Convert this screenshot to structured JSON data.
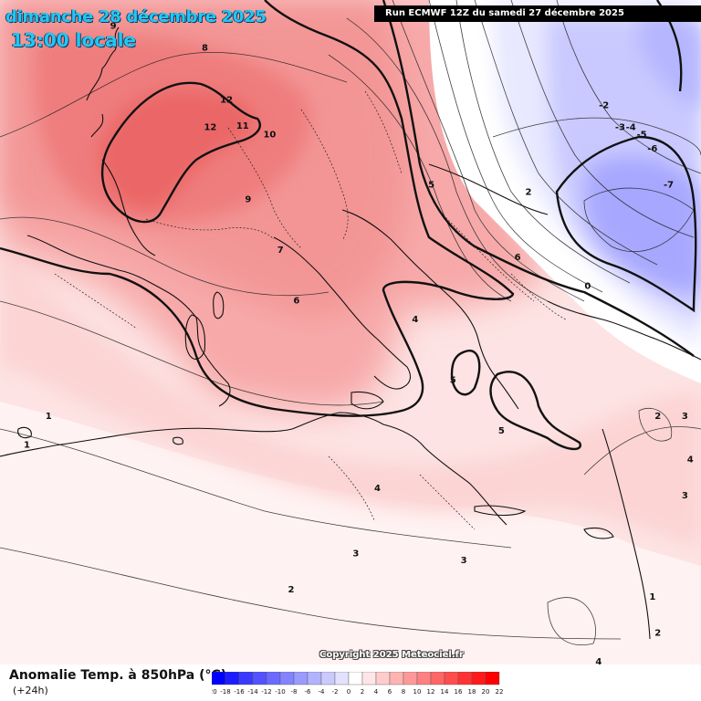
{
  "header": {
    "date_line": "dimanche 28 décembre 2025",
    "time_line": "13:00 locale",
    "run_info": "Run ECMWF 12Z du samedi 27 décembre 2025"
  },
  "footer": {
    "variable_title": "Anomalie Temp. à 850hPa (°C)",
    "lead_time": "(+24h)",
    "copyright": "Copyright 2025 Meteociel.fr"
  },
  "legend": {
    "values": [
      "-20",
      "-18",
      "-16",
      "-14",
      "-12",
      "-10",
      "-8",
      "-6",
      "-4",
      "-2",
      "0",
      "2",
      "4",
      "6",
      "8",
      "10",
      "12",
      "14",
      "16",
      "18",
      "20",
      "22"
    ],
    "colors": [
      "#0000ff",
      "#1c1cff",
      "#3a3aff",
      "#5252ff",
      "#6a6aff",
      "#8383ff",
      "#9a9aff",
      "#b2b2ff",
      "#cacaff",
      "#e2e2ff",
      "#ffffff",
      "#ffe6e6",
      "#ffcccc",
      "#ffb3b3",
      "#ff9999",
      "#ff8080",
      "#ff6666",
      "#ff4d4d",
      "#ff3333",
      "#ff1a1a",
      "#ff0000"
    ]
  },
  "contour_labels": [
    {
      "text": "9",
      "lon": -9.5,
      "lat": 54.0
    },
    {
      "text": "8",
      "lon": -1.0,
      "lat": 52.5
    },
    {
      "text": "12",
      "lon": 1.0,
      "lat": 48.9
    },
    {
      "text": "12",
      "lon": -0.5,
      "lat": 47.0
    },
    {
      "text": "11",
      "lon": 2.5,
      "lat": 47.1
    },
    {
      "text": "10",
      "lon": 5.0,
      "lat": 46.5
    },
    {
      "text": "9",
      "lon": 3.0,
      "lat": 42.0
    },
    {
      "text": "7",
      "lon": 6.0,
      "lat": 38.5
    },
    {
      "text": "6",
      "lon": 7.5,
      "lat": 35.0
    },
    {
      "text": "4",
      "lon": 18.5,
      "lat": 33.7
    },
    {
      "text": "5",
      "lon": 22.0,
      "lat": 29.5
    },
    {
      "text": "5",
      "lon": 26.5,
      "lat": 26.0
    },
    {
      "text": "6",
      "lon": 28.0,
      "lat": 38.0
    },
    {
      "text": "2",
      "lon": 29.0,
      "lat": 42.5
    },
    {
      "text": "5",
      "lon": 20.0,
      "lat": 43.0
    },
    {
      "text": "0",
      "lon": 34.5,
      "lat": 36.0
    },
    {
      "text": "-2",
      "lon": 36.0,
      "lat": 48.5
    },
    {
      "text": "-3",
      "lon": 37.5,
      "lat": 47.0
    },
    {
      "text": "-4",
      "lon": 38.5,
      "lat": 47.0
    },
    {
      "text": "-5",
      "lon": 39.5,
      "lat": 46.5
    },
    {
      "text": "-6",
      "lon": 40.5,
      "lat": 45.5
    },
    {
      "text": "-7",
      "lon": 42.0,
      "lat": 43.0
    },
    {
      "text": "4",
      "lon": 15.0,
      "lat": 22.0
    },
    {
      "text": "3",
      "lon": 13.0,
      "lat": 17.5
    },
    {
      "text": "3",
      "lon": 23.0,
      "lat": 17.0
    },
    {
      "text": "2",
      "lon": 7.0,
      "lat": 15.0
    },
    {
      "text": "2",
      "lon": 41.0,
      "lat": 12.0
    },
    {
      "text": "1",
      "lon": -15.5,
      "lat": 27.0
    },
    {
      "text": "1",
      "lon": -17.5,
      "lat": 25.0
    },
    {
      "text": "2",
      "lon": 41.0,
      "lat": 27.0
    },
    {
      "text": "3",
      "lon": 43.5,
      "lat": 27.0
    },
    {
      "text": "4",
      "lon": 44.0,
      "lat": 24.0
    },
    {
      "text": "3",
      "lon": 43.5,
      "lat": 21.5
    },
    {
      "text": "1",
      "lon": 40.5,
      "lat": 14.5
    },
    {
      "text": "4",
      "lon": 35.5,
      "lat": 10.0
    }
  ]
}
